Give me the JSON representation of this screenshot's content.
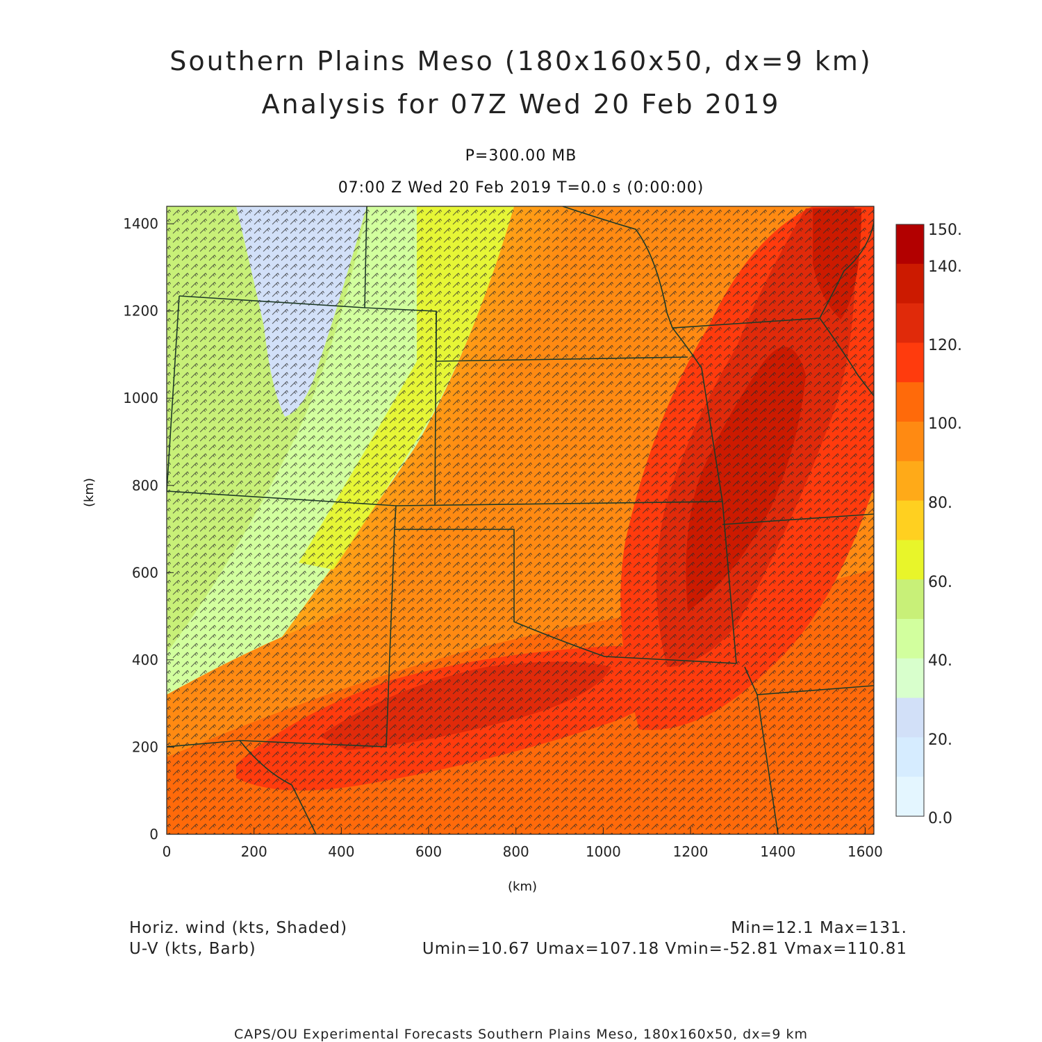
{
  "header": {
    "title_line1": "Southern Plains Meso (180x160x50, dx=9 km)",
    "title_line2": "Analysis for 07Z Wed 20 Feb 2019",
    "level": "P=300.00 MB",
    "valid_time": "07:00 Z Wed 20 Feb 2019    T=0.0 s (0:00:00)"
  },
  "axes": {
    "x_label": "(km)",
    "y_label": "(km)",
    "x_ticks": [
      "0",
      "200",
      "400",
      "600",
      "800",
      "1000",
      "1200",
      "1400",
      "1600"
    ],
    "y_ticks": [
      "0",
      "200",
      "400",
      "600",
      "800",
      "1000",
      "1200",
      "1400"
    ],
    "x_range_km": [
      0,
      1620
    ],
    "y_range_km": [
      0,
      1440
    ]
  },
  "colorbar": {
    "labels": [
      "150.",
      "140.",
      "120.",
      "100.",
      "80.",
      "60.",
      "40.",
      "20.",
      "0.0"
    ],
    "colors": [
      "#b20000",
      "#cc1a00",
      "#e02a0a",
      "#ff3b0d",
      "#ff6a0a",
      "#ff8a12",
      "#ffaa18",
      "#ffd020",
      "#e8f52a",
      "#c8f078",
      "#d2ff9e",
      "#d8ffcc",
      "#d2e0f8",
      "#d6ecff",
      "#e4f6ff"
    ]
  },
  "footer": {
    "left_line1": "Horiz. wind (kts, Shaded)",
    "left_line2": "U-V (kts, Barb)",
    "right_line1": "Min=12.1 Max=131.",
    "right_line2": "Umin=10.67 Umax=107.18 Vmin=-52.81 Vmax=110.81",
    "credit": "CAPS/OU Experimental Forecasts  Southern Plains Meso, 180x160x50, dx=9 km"
  }
}
